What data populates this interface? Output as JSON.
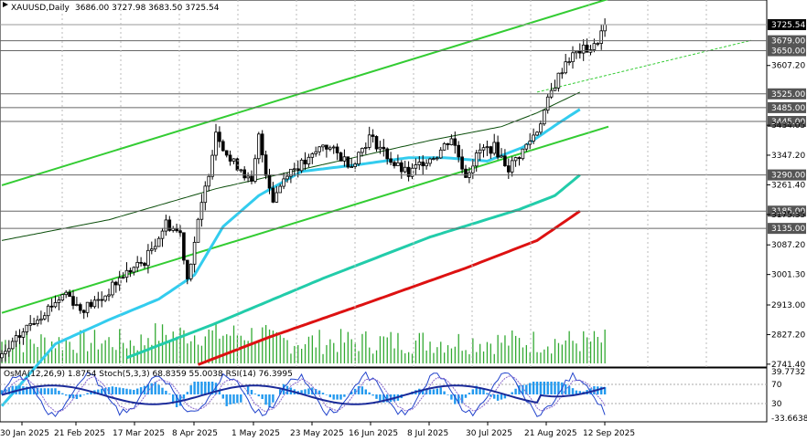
{
  "header": {
    "symbol": "XAUUSD,Daily",
    "ohlc": "3686.00 3727.98 3683.50 3725.54"
  },
  "indicator_header": "OsMA(12,26,9) 1.8754  Stoch(5,3,3) 68.8359 55.0038  RSI(14) 76.3995",
  "colors": {
    "candle": "#000000",
    "channel": "#33cc33",
    "ma_dark": "#0a4d0a",
    "ma_cyan": "#33ccee",
    "ma_teal": "#22ccaa",
    "ma_red": "#dd1111",
    "volume": "#33aa33",
    "osma": "#2299ee",
    "stoch_main": "#2244cc",
    "stoch_signal": "#8866cc",
    "rsi": "#1a2a99",
    "level_bg": "#555555",
    "current_bg": "#000000"
  },
  "chart_data": {
    "type": "candlestick",
    "symbol": "XAUUSD",
    "timeframe": "Daily",
    "last_price": 3725.54,
    "ylim": [
      2741.0,
      3760.0
    ],
    "y_ticks": [
      "3607.20",
      "3434.05",
      "3347.20",
      "3261.40",
      "3175.35",
      "3087.20",
      "3001.30",
      "2913.00",
      "2827.20",
      "2741.40"
    ],
    "level_labels": [
      "3725.54",
      "3679.00",
      "3650.00",
      "3525.00",
      "3485.00",
      "3445.00",
      "3290.00",
      "3185.00",
      "3135.00"
    ],
    "x_labels": [
      "30 Jan 2025",
      "21 Feb 2025",
      "17 Mar 2025",
      "8 Apr 2025",
      "1 May 2025",
      "23 May 2025",
      "16 Jun 2025",
      "8 Jul 2025",
      "30 Jul 2025",
      "21 Aug 2025",
      "12 Sep 2025"
    ],
    "x_positions": [
      0,
      16,
      32,
      48,
      64,
      80,
      96,
      112,
      128,
      144,
      160
    ],
    "n_bars": 170,
    "closes_keypoints": [
      [
        0,
        2760
      ],
      [
        8,
        2860
      ],
      [
        18,
        2950
      ],
      [
        22,
        2900
      ],
      [
        28,
        2930
      ],
      [
        34,
        3000
      ],
      [
        40,
        3040
      ],
      [
        46,
        3150
      ],
      [
        50,
        3120
      ],
      [
        52,
        2990
      ],
      [
        55,
        3150
      ],
      [
        58,
        3300
      ],
      [
        60,
        3420
      ],
      [
        64,
        3330
      ],
      [
        67,
        3310
      ],
      [
        70,
        3260
      ],
      [
        72,
        3400
      ],
      [
        74,
        3300
      ],
      [
        76,
        3220
      ],
      [
        80,
        3300
      ],
      [
        86,
        3330
      ],
      [
        90,
        3380
      ],
      [
        94,
        3350
      ],
      [
        98,
        3320
      ],
      [
        103,
        3400
      ],
      [
        106,
        3370
      ],
      [
        110,
        3320
      ],
      [
        114,
        3290
      ],
      [
        118,
        3330
      ],
      [
        122,
        3350
      ],
      [
        126,
        3400
      ],
      [
        130,
        3290
      ],
      [
        134,
        3360
      ],
      [
        138,
        3370
      ],
      [
        142,
        3310
      ],
      [
        146,
        3360
      ],
      [
        150,
        3420
      ],
      [
        154,
        3530
      ],
      [
        158,
        3620
      ],
      [
        162,
        3650
      ],
      [
        166,
        3660
      ],
      [
        169,
        3725
      ]
    ],
    "ma_cyan_keypoints": [
      [
        0,
        2620
      ],
      [
        15,
        2800
      ],
      [
        30,
        2870
      ],
      [
        44,
        2930
      ],
      [
        54,
        3000
      ],
      [
        62,
        3140
      ],
      [
        72,
        3230
      ],
      [
        84,
        3300
      ],
      [
        100,
        3320
      ],
      [
        114,
        3340
      ],
      [
        124,
        3340
      ],
      [
        136,
        3330
      ],
      [
        146,
        3370
      ],
      [
        156,
        3440
      ],
      [
        162,
        3480
      ]
    ],
    "ma_dark_keypoints": [
      [
        0,
        3100
      ],
      [
        30,
        3160
      ],
      [
        60,
        3250
      ],
      [
        90,
        3320
      ],
      [
        120,
        3390
      ],
      [
        140,
        3430
      ],
      [
        150,
        3470
      ],
      [
        162,
        3530
      ]
    ],
    "ma_teal_keypoints": [
      [
        35,
        2760
      ],
      [
        60,
        2860
      ],
      [
        90,
        2990
      ],
      [
        120,
        3110
      ],
      [
        145,
        3190
      ],
      [
        155,
        3230
      ],
      [
        162,
        3290
      ]
    ],
    "ma_red_keypoints": [
      [
        55,
        2740
      ],
      [
        75,
        2820
      ],
      [
        100,
        2910
      ],
      [
        130,
        3020
      ],
      [
        150,
        3100
      ],
      [
        162,
        3185
      ]
    ],
    "channel_upper": [
      [
        0,
        3260
      ],
      [
        170,
        3800
      ]
    ],
    "channel_lower": [
      [
        0,
        2890
      ],
      [
        170,
        3430
      ]
    ],
    "channel_mid_dashed": [
      [
        150,
        3530
      ],
      [
        210,
        3680
      ]
    ],
    "indicator_scale": [
      "39.7732",
      "70",
      "30",
      "-33.6638"
    ]
  }
}
